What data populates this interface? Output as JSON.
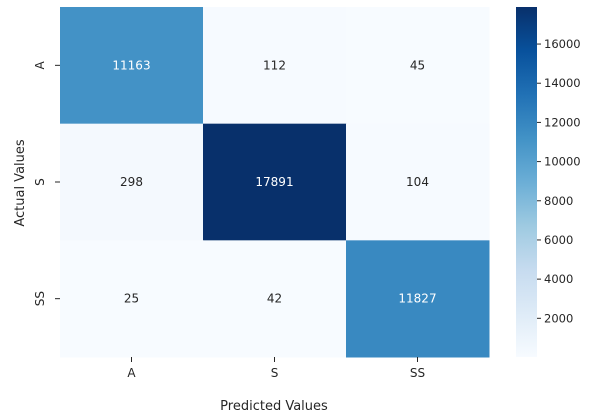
{
  "chart_data": {
    "type": "heatmap",
    "title": "",
    "xlabel": "Predicted Values",
    "ylabel": "Actual Values",
    "x_categories": [
      "A",
      "S",
      "SS"
    ],
    "y_categories": [
      "A",
      "S",
      "SS"
    ],
    "values": [
      [
        11163,
        112,
        45
      ],
      [
        298,
        17891,
        104
      ],
      [
        25,
        42,
        11827
      ]
    ],
    "colormap": "Blues",
    "colorbar": {
      "range": [
        25,
        17891
      ],
      "ticks": [
        2000,
        4000,
        6000,
        8000,
        10000,
        12000,
        14000,
        16000
      ]
    },
    "annotations": true
  }
}
